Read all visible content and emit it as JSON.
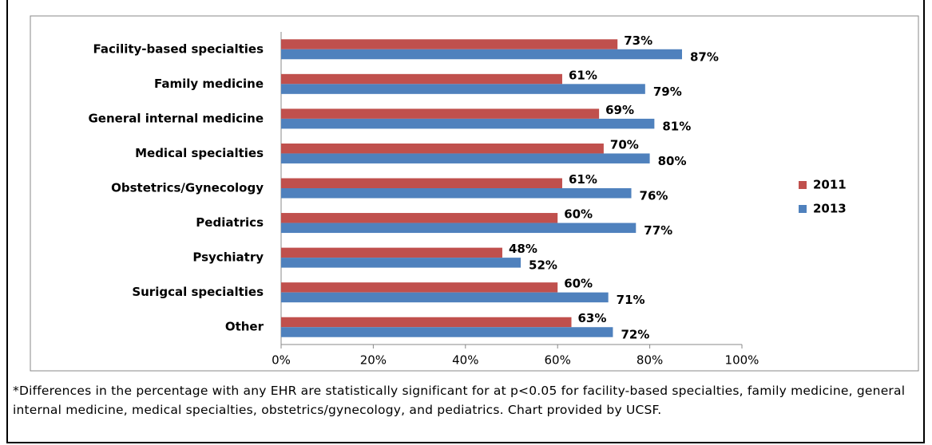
{
  "chart_data": {
    "type": "hbar",
    "categories": [
      "Facility-based specialties",
      "Family medicine",
      "General internal medicine",
      "Medical specialties",
      "Obstetrics/Gynecology",
      "Pediatrics",
      "Psychiatry",
      "Surigcal specialties",
      "Other"
    ],
    "series": [
      {
        "name": "2011",
        "color": "#c0504d",
        "values": [
          73,
          61,
          69,
          70,
          61,
          60,
          48,
          60,
          63
        ],
        "value_labels": [
          "73%",
          "61%",
          "69%",
          "70%",
          "61%",
          "60%",
          "48%",
          "60%",
          "63%"
        ]
      },
      {
        "name": "2013",
        "color": "#4f81bd",
        "values": [
          87,
          79,
          81,
          80,
          76,
          77,
          52,
          71,
          72
        ],
        "value_labels": [
          "87%",
          "79%",
          "81%",
          "80%",
          "76%",
          "77%",
          "52%",
          "71%",
          "72%"
        ]
      }
    ],
    "xlim": [
      0,
      100
    ],
    "xticks": [
      {
        "value": 0,
        "label": "0%"
      },
      {
        "value": 20,
        "label": "20%"
      },
      {
        "value": 40,
        "label": "40%"
      },
      {
        "value": 60,
        "label": "60%"
      },
      {
        "value": 80,
        "label": "80%"
      },
      {
        "value": 100,
        "label": "100%"
      }
    ],
    "grid": false,
    "legend": "right",
    "footnote": "*Differences in the percentage with any EHR are statistically significant for at p<0.05 for facility-based specialties, family medicine, general internal medicine, medical specialties, obstetrics/gynecology, and pediatrics. Chart provided by UCSF."
  }
}
